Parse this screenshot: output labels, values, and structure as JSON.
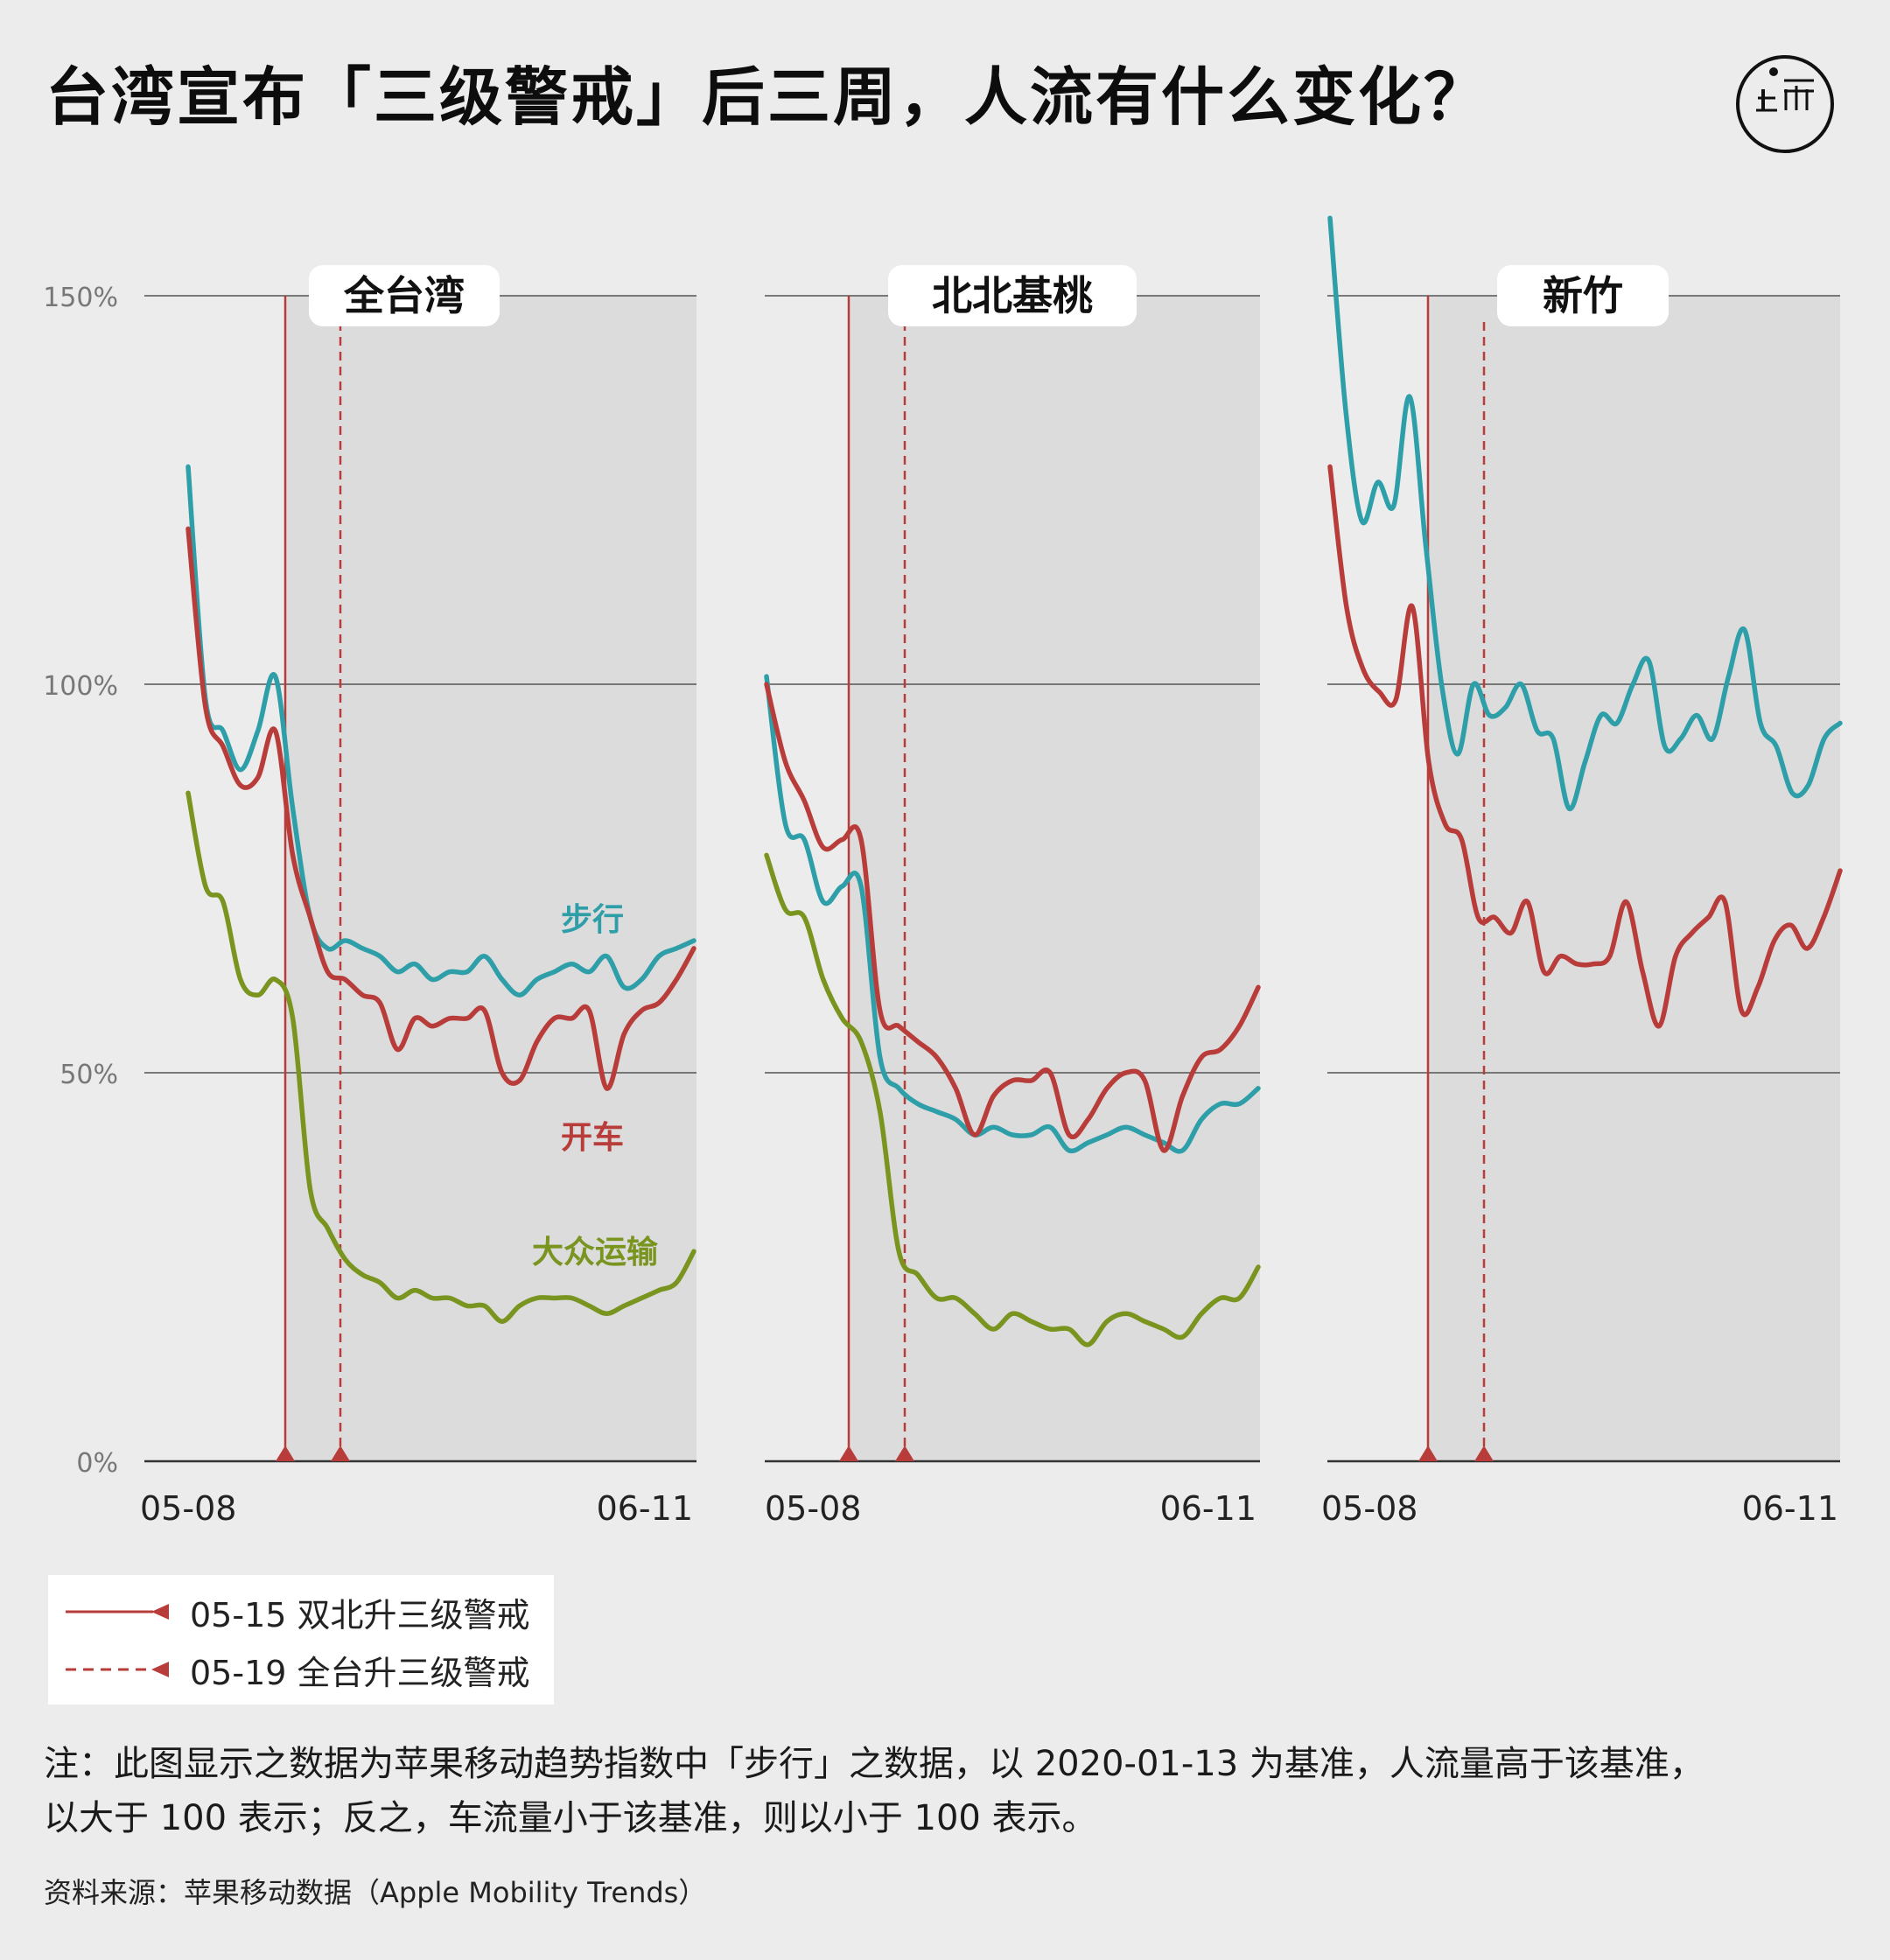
{
  "title": "台湾宣布「三级警戒」后三周，人流有什么变化？",
  "logo_icon": "initium-logo-icon",
  "colors": {
    "walking": "#2e9fa8",
    "driving": "#b83d3a",
    "transit": "#7a9420",
    "marker": "#b83d3a",
    "shade": "#dcdcdc",
    "grid": "#555555"
  },
  "chart_data": {
    "type": "line",
    "ylim": [
      0,
      150
    ],
    "yticks": [
      "0%",
      "50%",
      "100%",
      "150%"
    ],
    "x_start": "05-08",
    "x_end": "06-11",
    "grid": true,
    "series_names": [
      "步行",
      "开车",
      "大众运输"
    ],
    "markers": [
      {
        "date": "05-15",
        "style": "solid",
        "label": "05-15 双北升三级警戒"
      },
      {
        "date": "05-19",
        "style": "dashed",
        "label": "05-19 全台升三级警戒"
      }
    ],
    "panels": [
      {
        "title": "全台湾",
        "series": [
          {
            "name": "步行",
            "values": [
              128,
              98,
              94,
              89,
              94,
              101,
              84,
              70,
              66,
              67,
              66,
              65,
              63,
              64,
              62,
              63,
              63,
              65,
              62,
              60,
              62,
              63,
              64,
              63,
              65,
              61,
              62,
              65,
              66,
              67
            ]
          },
          {
            "name": "开车",
            "values": [
              120,
              97,
              92,
              87,
              88,
              94,
              78,
              70,
              63,
              62,
              60,
              59,
              53,
              57,
              56,
              57,
              57,
              58,
              50,
              49,
              54,
              57,
              57,
              58,
              48,
              55,
              58,
              59,
              62,
              66
            ]
          },
          {
            "name": "大众运输",
            "values": [
              86,
              74,
              72,
              62,
              60,
              62,
              57,
              35,
              30,
              26,
              24,
              23,
              21,
              22,
              21,
              21,
              20,
              20,
              18,
              20,
              21,
              21,
              21,
              20,
              19,
              20,
              21,
              22,
              23,
              27
            ]
          }
        ]
      },
      {
        "title": "北北基桃",
        "series": [
          {
            "name": "步行",
            "values": [
              101,
              82,
              80,
              72,
              74,
              74,
              52,
              48,
              46,
              45,
              44,
              42,
              43,
              42,
              42,
              43,
              40,
              41,
              42,
              43,
              42,
              41,
              40,
              44,
              46,
              46,
              48
            ]
          },
          {
            "name": "开车",
            "values": [
              100,
              90,
              85,
              79,
              80,
              80,
              58,
              56,
              54,
              52,
              48,
              42,
              47,
              49,
              49,
              50,
              42,
              44,
              48,
              50,
              49,
              40,
              47,
              52,
              53,
              56,
              61
            ]
          },
          {
            "name": "大众运输",
            "values": [
              78,
              71,
              70,
              62,
              57,
              54,
              45,
              27,
              24,
              21,
              21,
              19,
              17,
              19,
              18,
              17,
              17,
              15,
              18,
              19,
              18,
              17,
              16,
              19,
              21,
              21,
              25
            ]
          }
        ]
      },
      {
        "title": "新竹",
        "series": [
          {
            "name": "步行",
            "values": [
              160,
              135,
              121,
              126,
              123,
              137,
              118,
              100,
              91,
              100,
              96,
              97,
              100,
              94,
              93,
              84,
              90,
              96,
              95,
              100,
              103,
              92,
              93,
              96,
              93,
              101,
              107,
              95,
              92,
              86,
              87,
              93,
              95
            ]
          },
          {
            "name": "开车",
            "values": [
              128,
              110,
              102,
              99,
              98,
              110,
              90,
              82,
              80,
              70,
              70,
              68,
              72,
              63,
              65,
              64,
              64,
              65,
              72,
              63,
              56,
              65,
              68,
              70,
              72,
              58,
              61,
              67,
              69,
              66,
              70,
              76
            ]
          }
        ]
      }
    ],
    "line_labels": [
      {
        "series": "步行",
        "text": "步行"
      },
      {
        "series": "开车",
        "text": "开车"
      },
      {
        "series": "大众运输",
        "text": "大众运输"
      }
    ]
  },
  "legend": {
    "items": [
      {
        "label": "05-15 双北升三级警戒"
      },
      {
        "label": "05-19 全台升三级警戒"
      }
    ]
  },
  "note": {
    "line1": "注：此图显示之数据为苹果移动趋势指数中「步行」之数据，以 2020-01-13 为基准，人流量高于该基准，",
    "line2": "以大于 100 表示；反之，车流量小于该基准，则以小于 100 表示。"
  },
  "source": "资料来源：苹果移动数据（Apple Mobility Trends）"
}
